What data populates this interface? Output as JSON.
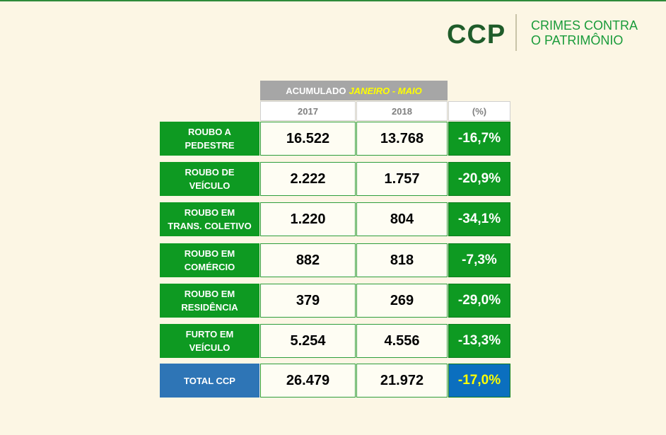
{
  "header": {
    "brand": "CCP",
    "subtitle_line1": "CRIMES CONTRA",
    "subtitle_line2": "O PATRIMÔNIO"
  },
  "table": {
    "accum_label": "ACUMULADO",
    "accum_period": "JANEIRO - MAIO",
    "col_2017": "2017",
    "col_2018": "2018",
    "col_pct": "(%)",
    "rows": [
      {
        "label": "ROUBO A\nPEDESTRE",
        "v2017": "16.522",
        "v2018": "13.768",
        "pct": "-16,7%"
      },
      {
        "label": "ROUBO DE\nVEÍCULO",
        "v2017": "2.222",
        "v2018": "1.757",
        "pct": "-20,9%"
      },
      {
        "label": "ROUBO EM\nTRANS. COLETIVO",
        "v2017": "1.220",
        "v2018": "804",
        "pct": "-34,1%"
      },
      {
        "label": "ROUBO EM\nCOMÉRCIO",
        "v2017": "882",
        "v2018": "818",
        "pct": "-7,3%"
      },
      {
        "label": "ROUBO EM\nRESIDÊNCIA",
        "v2017": "379",
        "v2018": "269",
        "pct": "-29,0%"
      },
      {
        "label": "FURTO EM\nVEÍCULO",
        "v2017": "5.254",
        "v2018": "4.556",
        "pct": "-13,3%"
      }
    ],
    "total": {
      "label": "TOTAL CCP",
      "v2017": "26.479",
      "v2018": "21.972",
      "pct": "-17,0%"
    }
  },
  "colors": {
    "background": "#fcf6e4",
    "category_green": "#0e9a22",
    "total_blue": "#2e75b6",
    "total_pct_blue": "#0b6fbf",
    "highlight_yellow": "#ffff00",
    "brand_dark_green": "#1f5c2a"
  }
}
